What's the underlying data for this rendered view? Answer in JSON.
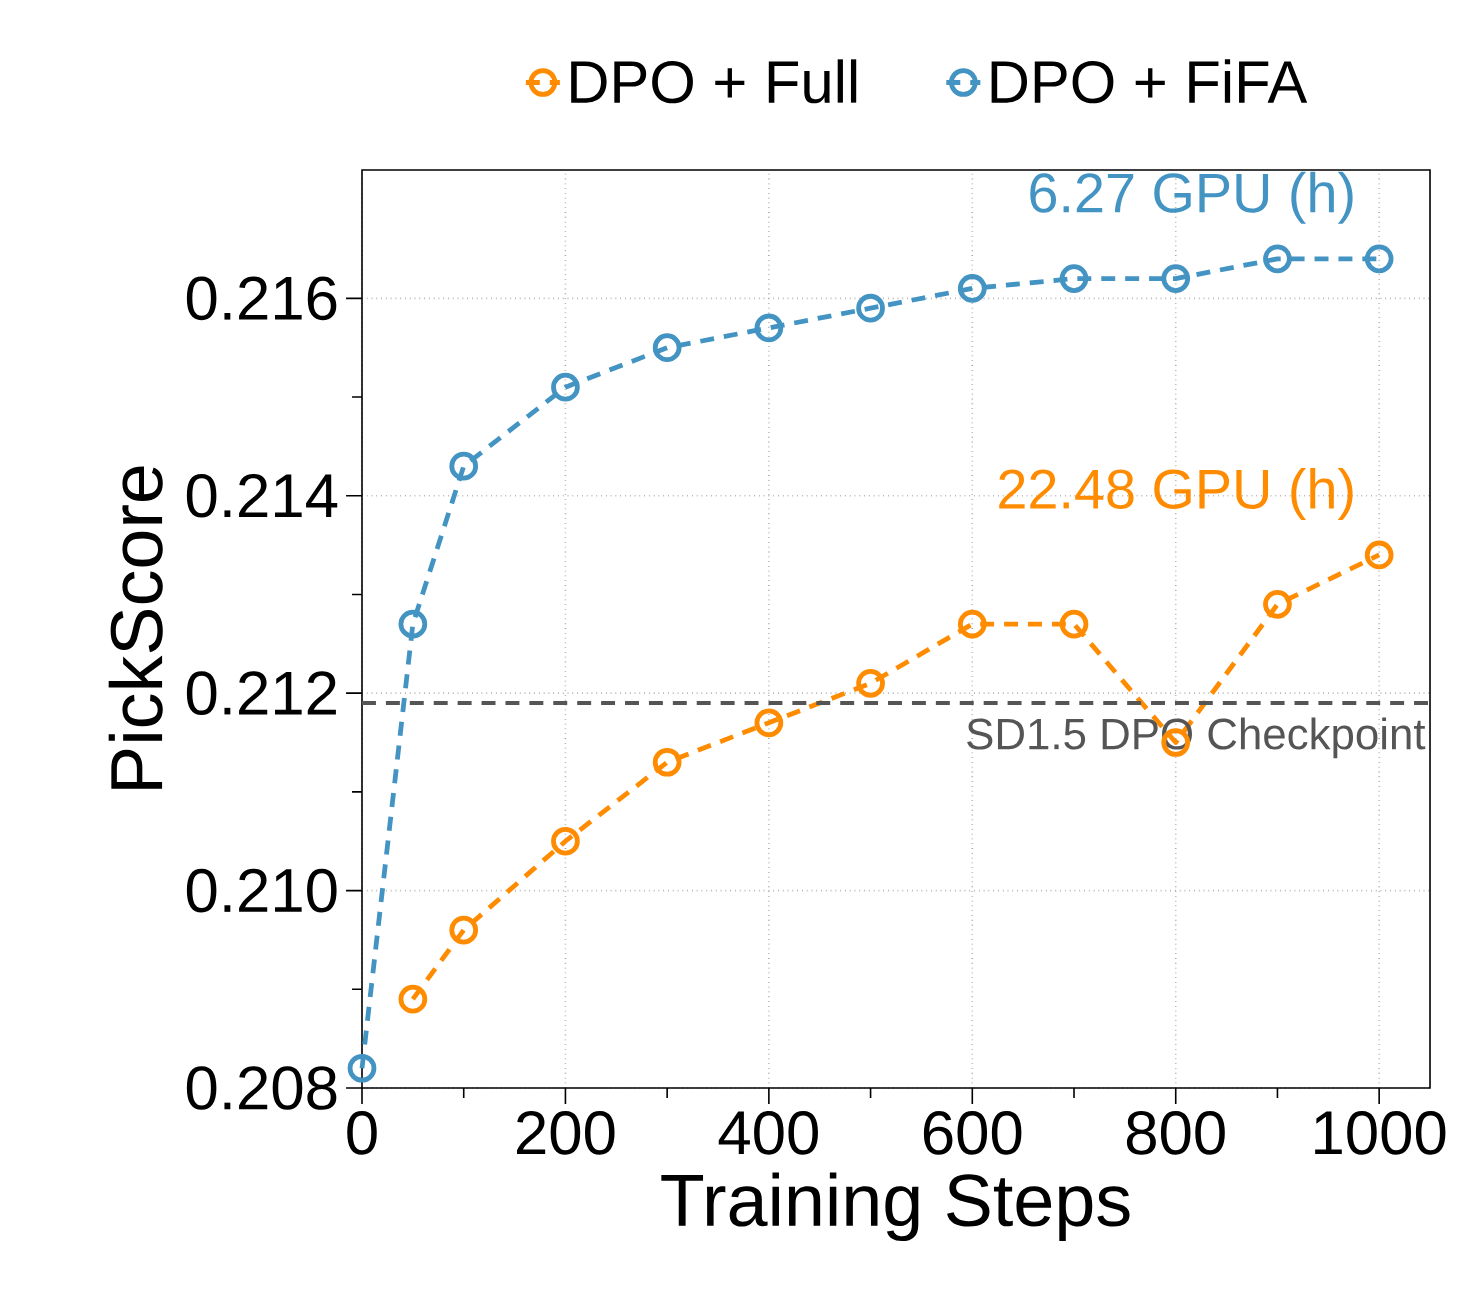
{
  "chart_data": {
    "type": "line",
    "xlabel": "Training Steps",
    "ylabel": "PickScore",
    "x": [
      0,
      50,
      100,
      200,
      300,
      400,
      500,
      600,
      700,
      800,
      900,
      1000
    ],
    "series": [
      {
        "name": "DPO + Full",
        "color": "#ff8c00",
        "values": [
          null,
          0.2089,
          0.2096,
          0.2105,
          0.2113,
          0.2117,
          0.2121,
          0.2127,
          0.2127,
          0.2115,
          0.2129,
          0.2134
        ]
      },
      {
        "name": "DPO + FiFA",
        "color": "#4393c3",
        "values": [
          0.2082,
          0.2127,
          0.2143,
          0.2151,
          0.2155,
          0.2157,
          0.2159,
          0.2161,
          0.2162,
          0.2162,
          0.2164,
          0.2164
        ]
      }
    ],
    "xlim": [
      0,
      1050
    ],
    "ylim": [
      0.208,
      0.2173
    ],
    "xticks": [
      0,
      200,
      400,
      600,
      800,
      1000
    ],
    "yticks": [
      {
        "value": 0.208,
        "label": "0.208"
      },
      {
        "value": 0.21,
        "label": "0.210"
      },
      {
        "value": 0.212,
        "label": "0.212"
      },
      {
        "value": 0.214,
        "label": "0.214"
      },
      {
        "value": 0.216,
        "label": "0.216"
      }
    ],
    "ref_lines": [
      {
        "axis": "y",
        "value": 0.2119,
        "label": "SD1.5 DPO Checkpoint",
        "color": "#555555",
        "line_style": "dashed"
      }
    ],
    "annotations": [
      {
        "text": "22.48 GPU (h)",
        "x": 1000,
        "y": 0.2134
      },
      {
        "text": "6.27 GPU (h)",
        "x": 1000,
        "y": 0.2164
      }
    ],
    "grid": true,
    "legend": "top",
    "marker": "circle",
    "line_style": "dashed"
  }
}
